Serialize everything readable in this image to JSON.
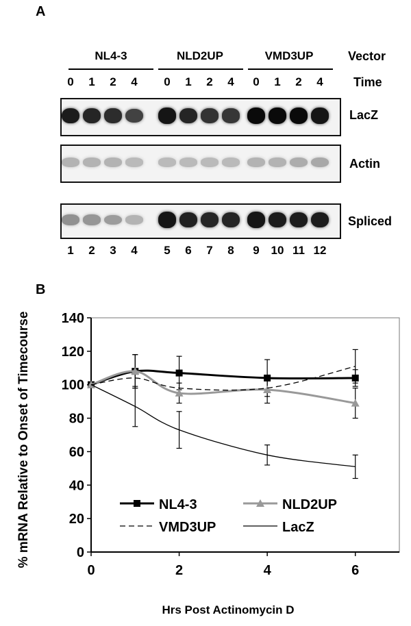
{
  "panel_a": {
    "letter": "A",
    "groups": [
      "NL4-3",
      "NLD2UP",
      "VMD3UP"
    ],
    "vector_label": "Vector",
    "time_label": "Time",
    "time_points": [
      "0",
      "1",
      "2",
      "4",
      "0",
      "1",
      "2",
      "4",
      "0",
      "1",
      "2",
      "4"
    ],
    "lane_numbers": [
      "1",
      "2",
      "3",
      "4",
      "5",
      "6",
      "7",
      "8",
      "9",
      "10",
      "11",
      "12"
    ],
    "blots": [
      {
        "label": "LacZ",
        "intensity": [
          0.92,
          0.88,
          0.85,
          0.75,
          0.95,
          0.88,
          0.82,
          0.8,
          1.0,
          1.0,
          1.0,
          0.95
        ]
      },
      {
        "label": "Actin",
        "intensity": [
          0.25,
          0.25,
          0.25,
          0.22,
          0.22,
          0.22,
          0.22,
          0.22,
          0.25,
          0.25,
          0.28,
          0.3
        ]
      },
      {
        "label": "Spliced",
        "intensity": [
          0.4,
          0.38,
          0.35,
          0.25,
          0.95,
          0.9,
          0.88,
          0.88,
          0.95,
          0.92,
          0.92,
          0.92
        ]
      }
    ]
  },
  "panel_b": {
    "letter": "B",
    "chart_data": {
      "type": "line",
      "xlabel": "Hrs Post Actinomycin D",
      "ylabel": "% mRNA Relative to Onset of Timecourse",
      "xlim": [
        0,
        7
      ],
      "ylim": [
        0,
        140
      ],
      "xticks": [
        0,
        2,
        4,
        6
      ],
      "yticks": [
        0,
        20,
        40,
        60,
        80,
        100,
        120,
        140
      ],
      "x": [
        0,
        1,
        2,
        4,
        6
      ],
      "series": [
        {
          "name": "NL4-3",
          "values": [
            100,
            108,
            107,
            104,
            104
          ],
          "errors": [
            0,
            10,
            10,
            11,
            5
          ],
          "color": "#000000",
          "marker": "square",
          "style": "solid",
          "width": 3
        },
        {
          "name": "NLD2UP",
          "values": [
            100,
            108,
            95,
            97,
            89
          ],
          "errors": [
            0,
            10,
            6,
            8,
            9
          ],
          "color": "#999999",
          "marker": "triangle",
          "style": "solid",
          "width": 3
        },
        {
          "name": "VMD3UP",
          "values": [
            100,
            104,
            98,
            98,
            111
          ],
          "errors": [
            0,
            0,
            0,
            0,
            10
          ],
          "color": "#000000",
          "marker": "none",
          "style": "dashed",
          "width": 1.3
        },
        {
          "name": "LacZ",
          "values": [
            100,
            87,
            73,
            58,
            51
          ],
          "errors": [
            0,
            12,
            11,
            6,
            7
          ],
          "color": "#000000",
          "marker": "none",
          "style": "solid",
          "width": 1.3
        }
      ],
      "legend_position": "bottom"
    }
  }
}
